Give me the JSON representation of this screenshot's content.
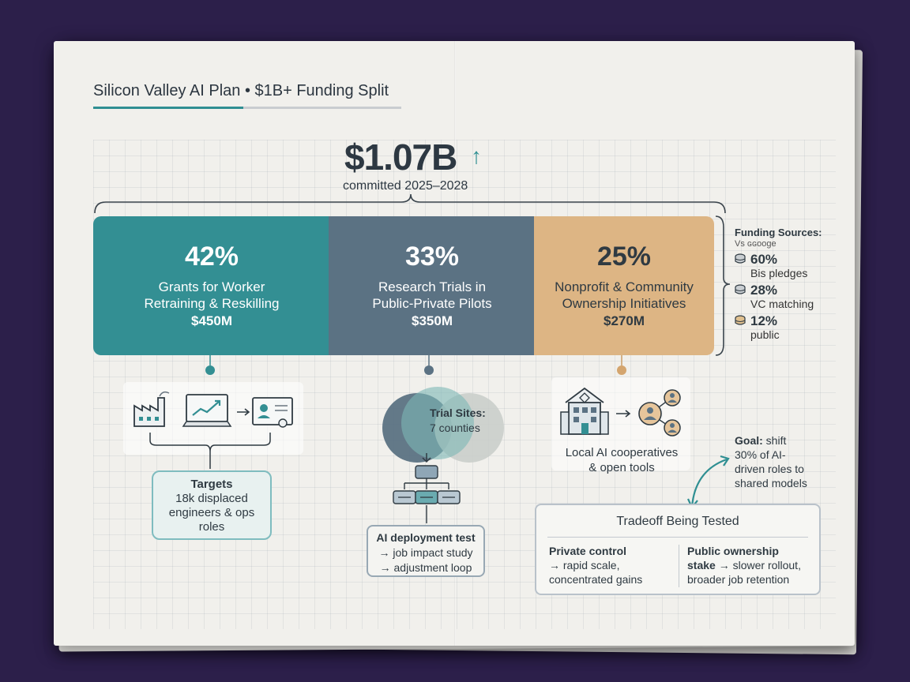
{
  "header": {
    "title": "Silicon Valley AI Plan • $1B+ Funding Split"
  },
  "total": {
    "amount": "$1.07B",
    "arrow": "↑",
    "period": "committed 2025–2028"
  },
  "allocations": [
    {
      "percent": "42%",
      "line1": "Grants for Worker",
      "line2": "Retraining & Reskilling",
      "amount": "$450M",
      "color": "#338f93"
    },
    {
      "percent": "33%",
      "line1": "Research Trials in",
      "line2": "Public-Private Pilots",
      "amount": "$350M",
      "color": "#5b7283"
    },
    {
      "percent": "25%",
      "line1": "Nonprofit & Community",
      "line2": "Ownership Initiatives",
      "amount": "$270M",
      "color": "#ddb584"
    }
  ],
  "funding_sources": {
    "heading": "Funding Sources:",
    "subheading": "Vs ɢɢooge",
    "items": [
      {
        "percent": "60%",
        "label": "Bis pledges"
      },
      {
        "percent": "28%",
        "label": "VC matching"
      },
      {
        "percent": "12%",
        "label": "public"
      }
    ]
  },
  "retraining": {
    "targets_label": "Targets",
    "targets_line1": "18k displaced",
    "targets_line2": "engineers & ops",
    "targets_line3": "roles"
  },
  "research": {
    "trial_heading": "Trial Sites:",
    "trial_value": "7 counties",
    "deploy_heading": "AI deployment test",
    "deploy_line1": "→ job impact study",
    "deploy_line2": "→ adjustment loop"
  },
  "community": {
    "coop_line1": "Local AI cooperatives",
    "coop_line2": "& open tools",
    "goal_bold": "Goal:",
    "goal_line1": "shift",
    "goal_line2": "30% of AI-",
    "goal_line3": "driven roles to",
    "goal_line4": "shared models"
  },
  "tradeoff": {
    "heading": "Tradeoff Being Tested",
    "left_title": "Private control",
    "left_line1": "→ rapid scale,",
    "left_line2": "concentrated gains",
    "right_title1": "Public ownership",
    "right_title2": "stake",
    "right_line1": "→ slower rollout,",
    "right_line2": "broader job retention"
  }
}
